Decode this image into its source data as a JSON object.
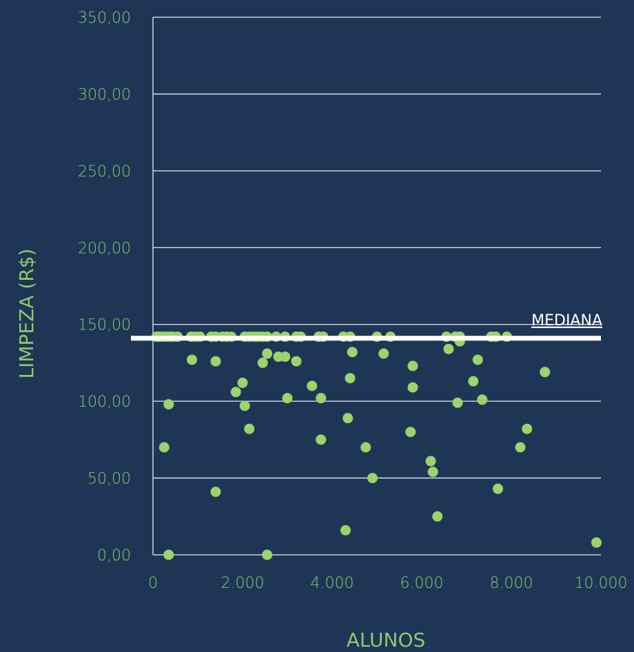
{
  "chart_data": {
    "type": "scatter",
    "xlabel": "ALUNOS",
    "ylabel": "LIMPEZA (R$)",
    "xlim": [
      0,
      10000
    ],
    "ylim": [
      0,
      350
    ],
    "x_ticks": [
      0,
      2000,
      4000,
      6000,
      8000,
      10000
    ],
    "x_tick_labels": [
      "0",
      "2.000",
      "4.000",
      "6.000",
      "8.000",
      "10.000"
    ],
    "y_ticks": [
      0,
      50,
      100,
      150,
      200,
      250,
      300,
      350
    ],
    "y_tick_labels": [
      "0,00",
      "50,00",
      "100,00",
      "150,00",
      "200,00",
      "250,00",
      "300,00",
      "350,00"
    ],
    "grid": true,
    "median": {
      "value": 141,
      "label": "MEDIANA"
    },
    "colors": {
      "background": "#1f3556",
      "points": "#9bd46c",
      "text": "#8ec96c",
      "median": "#ffffff",
      "grid": "#e8edf2"
    },
    "points": [
      {
        "x": 80,
        "y": 142
      },
      {
        "x": 150,
        "y": 142
      },
      {
        "x": 220,
        "y": 142
      },
      {
        "x": 300,
        "y": 142
      },
      {
        "x": 380,
        "y": 142
      },
      {
        "x": 450,
        "y": 142
      },
      {
        "x": 550,
        "y": 142
      },
      {
        "x": 850,
        "y": 142
      },
      {
        "x": 950,
        "y": 142
      },
      {
        "x": 1050,
        "y": 142
      },
      {
        "x": 1300,
        "y": 142
      },
      {
        "x": 1400,
        "y": 142
      },
      {
        "x": 1550,
        "y": 142
      },
      {
        "x": 1650,
        "y": 142
      },
      {
        "x": 1750,
        "y": 142
      },
      {
        "x": 2050,
        "y": 142
      },
      {
        "x": 2150,
        "y": 142
      },
      {
        "x": 2250,
        "y": 142
      },
      {
        "x": 2350,
        "y": 142
      },
      {
        "x": 2450,
        "y": 142
      },
      {
        "x": 2550,
        "y": 142
      },
      {
        "x": 2750,
        "y": 142
      },
      {
        "x": 2950,
        "y": 142
      },
      {
        "x": 3200,
        "y": 142
      },
      {
        "x": 3300,
        "y": 142
      },
      {
        "x": 3700,
        "y": 142
      },
      {
        "x": 3800,
        "y": 142
      },
      {
        "x": 4250,
        "y": 142
      },
      {
        "x": 4400,
        "y": 142
      },
      {
        "x": 5000,
        "y": 142
      },
      {
        "x": 5300,
        "y": 142
      },
      {
        "x": 6550,
        "y": 142
      },
      {
        "x": 6750,
        "y": 142
      },
      {
        "x": 6850,
        "y": 142
      },
      {
        "x": 7550,
        "y": 142
      },
      {
        "x": 7650,
        "y": 142
      },
      {
        "x": 7900,
        "y": 142
      },
      {
        "x": 870,
        "y": 127
      },
      {
        "x": 1400,
        "y": 126
      },
      {
        "x": 2450,
        "y": 125
      },
      {
        "x": 2550,
        "y": 131
      },
      {
        "x": 2800,
        "y": 129
      },
      {
        "x": 2950,
        "y": 129
      },
      {
        "x": 3200,
        "y": 126
      },
      {
        "x": 4450,
        "y": 132
      },
      {
        "x": 5150,
        "y": 131
      },
      {
        "x": 5800,
        "y": 123
      },
      {
        "x": 6600,
        "y": 134
      },
      {
        "x": 6850,
        "y": 139
      },
      {
        "x": 7250,
        "y": 127
      },
      {
        "x": 8750,
        "y": 119
      },
      {
        "x": 2000,
        "y": 112
      },
      {
        "x": 1850,
        "y": 106
      },
      {
        "x": 3550,
        "y": 110
      },
      {
        "x": 4400,
        "y": 115
      },
      {
        "x": 5800,
        "y": 109
      },
      {
        "x": 7150,
        "y": 113
      },
      {
        "x": 3000,
        "y": 102
      },
      {
        "x": 3750,
        "y": 102
      },
      {
        "x": 7350,
        "y": 101
      },
      {
        "x": 350,
        "y": 98
      },
      {
        "x": 2050,
        "y": 97
      },
      {
        "x": 6800,
        "y": 99
      },
      {
        "x": 4350,
        "y": 89
      },
      {
        "x": 2150,
        "y": 82
      },
      {
        "x": 5750,
        "y": 80
      },
      {
        "x": 8350,
        "y": 82
      },
      {
        "x": 3750,
        "y": 75
      },
      {
        "x": 250,
        "y": 70
      },
      {
        "x": 4750,
        "y": 70
      },
      {
        "x": 8200,
        "y": 70
      },
      {
        "x": 6200,
        "y": 61
      },
      {
        "x": 6250,
        "y": 54
      },
      {
        "x": 4900,
        "y": 50
      },
      {
        "x": 1400,
        "y": 41
      },
      {
        "x": 7700,
        "y": 43
      },
      {
        "x": 6350,
        "y": 25
      },
      {
        "x": 4300,
        "y": 16
      },
      {
        "x": 9900,
        "y": 8
      },
      {
        "x": 350,
        "y": 0
      },
      {
        "x": 2550,
        "y": 0
      }
    ]
  }
}
